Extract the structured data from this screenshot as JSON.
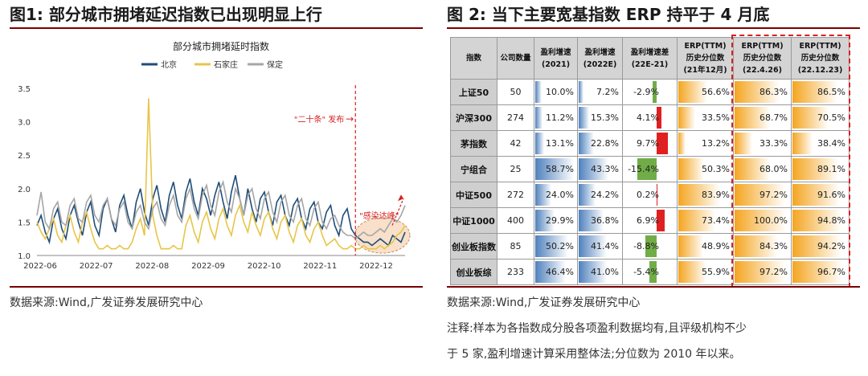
{
  "figure1": {
    "title": "图1:  部分城市拥堵延迟指数已出现明显上行",
    "source": "数据来源:Wind,广发证券发展研究中心"
  },
  "figure2": {
    "title": "图 2:  当下主要宽基指数 ERP 持平于 4 月底",
    "source": "数据来源:Wind,广发证券发展研究中心",
    "note_line1": "注释:样本为各指数成分股各项盈利数据均有,且评级机构不少",
    "note_line2": "于 5 家,盈利增速计算采用整体法;分位数为 2010 年以来。"
  },
  "chart_data": [
    {
      "type": "line",
      "title": "部分城市拥堵延时指数",
      "xlabel": "",
      "ylabel": "",
      "ylim": [
        1.0,
        3.5
      ],
      "yticks": [
        "1.0",
        "1.5",
        "2.0",
        "2.5",
        "3.0",
        "3.5"
      ],
      "xticks": [
        "2022-06",
        "2022-07",
        "2022-08",
        "2022-09",
        "2022-10",
        "2022-11",
        "2022-12"
      ],
      "legend_position": "top-center",
      "grid": false,
      "series": [
        {
          "name": "北京",
          "color": "#1f4e79",
          "values": [
            1.45,
            1.6,
            1.35,
            1.2,
            1.55,
            1.7,
            1.4,
            1.25,
            1.6,
            1.75,
            1.5,
            1.3,
            1.65,
            1.8,
            1.45,
            1.3,
            1.7,
            1.85,
            1.55,
            1.35,
            1.75,
            1.9,
            1.6,
            1.4,
            1.8,
            2.0,
            1.65,
            1.45,
            1.85,
            2.05,
            1.7,
            1.5,
            1.9,
            2.1,
            1.75,
            1.55,
            1.95,
            2.15,
            1.8,
            1.6,
            2.0,
            1.85,
            1.6,
            1.9,
            2.1,
            1.8,
            1.55,
            1.95,
            2.2,
            1.85,
            1.6,
            2.0,
            1.7,
            1.5,
            1.85,
            1.95,
            1.65,
            1.45,
            1.8,
            1.9,
            1.6,
            1.45,
            1.75,
            1.85,
            1.55,
            1.4,
            1.7,
            1.8,
            1.5,
            1.4,
            1.65,
            1.75,
            1.45,
            1.3,
            1.6,
            1.7,
            1.4,
            1.3,
            1.25,
            1.2,
            1.2,
            1.15,
            1.2,
            1.25,
            1.2,
            1.15,
            1.3,
            1.25,
            1.2,
            1.35
          ]
        },
        {
          "name": "石家庄",
          "color": "#e8c547",
          "values": [
            1.5,
            1.35,
            1.25,
            1.4,
            1.55,
            1.3,
            1.2,
            1.45,
            1.6,
            1.35,
            1.2,
            1.5,
            1.65,
            1.4,
            1.2,
            1.1,
            1.1,
            1.15,
            1.1,
            1.1,
            1.15,
            1.1,
            1.1,
            1.2,
            1.4,
            1.55,
            1.3,
            3.35,
            1.6,
            1.3,
            1.1,
            1.1,
            1.1,
            1.15,
            1.1,
            1.1,
            1.45,
            1.6,
            1.35,
            1.2,
            1.5,
            1.65,
            1.4,
            1.25,
            1.55,
            1.7,
            1.45,
            1.3,
            1.6,
            1.75,
            1.5,
            1.35,
            1.65,
            1.45,
            1.3,
            1.55,
            1.65,
            1.4,
            1.25,
            1.5,
            1.6,
            1.35,
            1.2,
            1.45,
            1.55,
            1.3,
            1.2,
            1.4,
            1.5,
            1.3,
            1.15,
            1.2,
            1.25,
            1.15,
            1.1,
            1.1,
            1.15,
            1.1,
            1.1,
            1.15,
            1.1,
            1.1,
            1.1,
            1.15,
            1.1,
            1.15,
            1.2,
            1.3,
            1.35,
            1.45
          ]
        },
        {
          "name": "保定",
          "color": "#a6a6a6",
          "values": [
            1.6,
            1.95,
            1.5,
            1.4,
            1.7,
            1.8,
            1.5,
            1.45,
            1.75,
            1.85,
            1.55,
            1.5,
            1.8,
            1.9,
            1.6,
            1.5,
            1.75,
            1.85,
            1.55,
            1.45,
            1.7,
            1.8,
            1.5,
            1.4,
            1.65,
            1.75,
            1.5,
            1.4,
            1.7,
            1.8,
            1.55,
            1.45,
            1.75,
            1.9,
            1.6,
            1.5,
            1.85,
            2.0,
            1.7,
            1.55,
            1.9,
            2.05,
            1.75,
            1.6,
            1.95,
            2.1,
            1.8,
            1.65,
            2.0,
            1.85,
            1.6,
            1.9,
            2.0,
            1.7,
            1.55,
            1.85,
            1.95,
            1.65,
            1.5,
            1.8,
            1.9,
            1.6,
            1.5,
            1.75,
            1.85,
            1.55,
            1.45,
            1.7,
            1.8,
            1.5,
            1.4,
            1.55,
            1.6,
            1.45,
            1.35,
            1.3,
            1.3,
            1.25,
            1.3,
            1.35,
            1.3,
            1.3,
            1.35,
            1.4,
            1.35,
            1.45,
            1.55,
            1.5,
            1.6,
            1.75
          ]
        }
      ],
      "annotations": {
        "policy_label": "\"二十条\" 发布",
        "policy_arrow": "→",
        "peak_label": "\"感染达峰\"",
        "policy_index": 77,
        "peak_start_index": 78,
        "peak_end_index": 90
      }
    },
    {
      "type": "table",
      "columns": [
        "指数",
        "公司数量",
        "盈利增速\n(2021)",
        "盈利增速\n(2022E)",
        "盈利增速差\n(22E-21)",
        "ERP(TTM)\n历史分位数\n(21年12月)",
        "ERP(TTM)\n历史分位数\n(22.4.26)",
        "ERP(TTM)\n历史分位数\n(22.12.23)"
      ],
      "rows": [
        {
          "name": "上证50",
          "count": "50",
          "g21": "10.0%",
          "g22": "7.2%",
          "diff": "-2.9%",
          "erp_dec": "56.6%",
          "erp_apr": "86.3%",
          "erp_now": "86.5%"
        },
        {
          "name": "沪深300",
          "count": "274",
          "g21": "11.2%",
          "g22": "15.3%",
          "diff": "4.1%",
          "erp_dec": "33.5%",
          "erp_apr": "68.7%",
          "erp_now": "70.5%"
        },
        {
          "name": "茅指数",
          "count": "42",
          "g21": "13.1%",
          "g22": "22.8%",
          "diff": "9.7%",
          "erp_dec": "13.2%",
          "erp_apr": "33.3%",
          "erp_now": "38.4%"
        },
        {
          "name": "宁组合",
          "count": "25",
          "g21": "58.7%",
          "g22": "43.3%",
          "diff": "-15.4%",
          "erp_dec": "50.3%",
          "erp_apr": "68.0%",
          "erp_now": "89.1%"
        },
        {
          "name": "中证500",
          "count": "272",
          "g21": "24.0%",
          "g22": "24.2%",
          "diff": "0.2%",
          "erp_dec": "83.9%",
          "erp_apr": "97.2%",
          "erp_now": "91.6%"
        },
        {
          "name": "中证1000",
          "count": "400",
          "g21": "29.9%",
          "g22": "36.8%",
          "diff": "6.9%",
          "erp_dec": "73.4%",
          "erp_apr": "100.0%",
          "erp_now": "94.8%"
        },
        {
          "name": "创业板指数",
          "count": "85",
          "g21": "50.2%",
          "g22": "41.4%",
          "diff": "-8.8%",
          "erp_dec": "48.9%",
          "erp_apr": "84.3%",
          "erp_now": "94.2%"
        },
        {
          "name": "创业板综",
          "count": "233",
          "g21": "46.4%",
          "g22": "41.0%",
          "diff": "-5.4%",
          "erp_dec": "55.9%",
          "erp_apr": "97.2%",
          "erp_now": "96.7%"
        }
      ],
      "colors": {
        "growth_bar": "#4f81bd",
        "diff_positive": "#e02020",
        "diff_negative": "#70ad47",
        "erp_bar": "#f4a521",
        "highlight_border": "#d62020"
      }
    }
  ]
}
